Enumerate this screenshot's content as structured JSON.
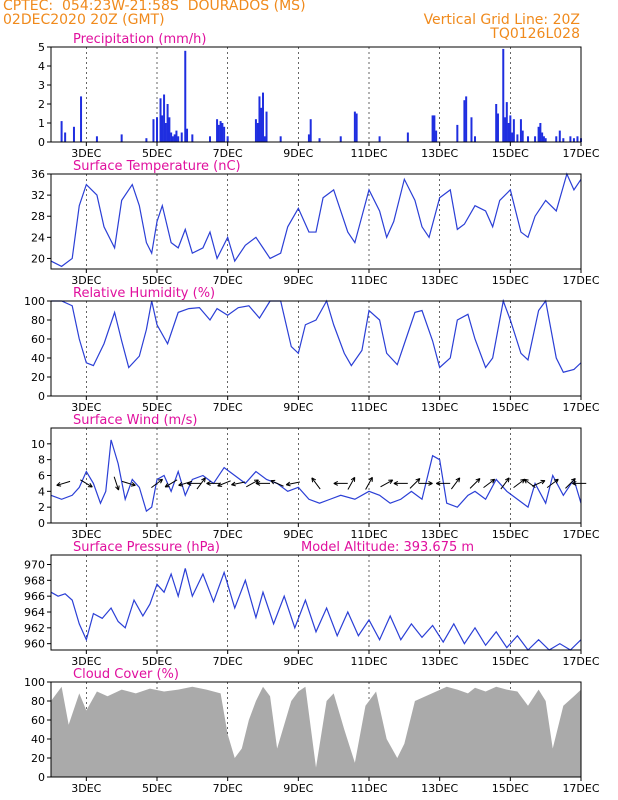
{
  "header": {
    "line1": "CPTEC:  054:23W-21:58S  DOURADOS (MS)",
    "line2": "02DEC2020 20Z (GMT)",
    "grid_note": "Vertical Grid Line: 20Z",
    "code": "TQ0126L028",
    "model_altitude": "Model Altitude: 393.675 m"
  },
  "colors": {
    "header": "#f08a1c",
    "title": "#e0109e",
    "line": "#2b3fd6",
    "bars": "#1f2ee0",
    "cloud": "#aaaaaa",
    "wind_arrow": "#000000"
  },
  "x_axis": {
    "unit": "days since 02DEC2020 20Z",
    "tick_labels": [
      "3DEC",
      "5DEC",
      "7DEC",
      "9DEC",
      "11DEC",
      "13DEC",
      "15DEC",
      "17DEC"
    ],
    "tick_days": [
      1,
      3,
      5,
      7,
      9,
      11,
      13,
      15
    ],
    "range": [
      0,
      15
    ]
  },
  "chart_data": [
    {
      "type": "bar",
      "title": "Precipitation (mm/h)",
      "ylim": [
        0,
        5
      ],
      "yticks": [
        0,
        1,
        2,
        3,
        4,
        5
      ],
      "x": [
        0.3,
        0.4,
        0.65,
        0.85,
        1.3,
        2.0,
        2.7,
        2.9,
        3.0,
        3.1,
        3.15,
        3.2,
        3.25,
        3.3,
        3.35,
        3.4,
        3.45,
        3.5,
        3.55,
        3.6,
        3.7,
        3.8,
        3.85,
        4.0,
        4.5,
        4.7,
        4.75,
        4.8,
        4.85,
        4.9,
        5.0,
        5.8,
        5.85,
        5.9,
        5.95,
        6.0,
        6.05,
        6.1,
        6.5,
        7.3,
        7.35,
        7.6,
        8.2,
        8.6,
        8.65,
        9.3,
        10.1,
        10.8,
        10.85,
        10.9,
        11.5,
        11.7,
        11.75,
        11.9,
        12.0,
        12.6,
        12.65,
        12.8,
        12.85,
        12.9,
        12.95,
        13.0,
        13.05,
        13.1,
        13.2,
        13.3,
        13.35,
        13.5,
        13.7,
        13.8,
        13.85,
        13.9,
        13.95,
        14.0,
        14.3,
        14.4,
        14.5,
        14.7,
        14.8,
        14.9,
        15.0
      ],
      "values": [
        1.1,
        0.5,
        0.8,
        2.4,
        0.3,
        0.4,
        0.2,
        1.2,
        1.3,
        2.3,
        1.4,
        2.5,
        1.0,
        2.0,
        1.3,
        0.5,
        0.3,
        0.4,
        0.6,
        0.3,
        0.5,
        4.8,
        0.7,
        0.4,
        0.3,
        1.2,
        0.9,
        1.1,
        1.0,
        0.8,
        0.3,
        1.2,
        1.0,
        2.4,
        1.8,
        2.6,
        0.3,
        1.6,
        0.3,
        0.4,
        1.2,
        0.2,
        0.3,
        1.6,
        1.5,
        0.3,
        0.5,
        1.4,
        1.4,
        0.6,
        0.9,
        2.2,
        2.4,
        1.3,
        0.3,
        2.0,
        1.5,
        4.9,
        1.3,
        2.1,
        1.0,
        1.4,
        0.5,
        1.2,
        0.4,
        1.2,
        0.6,
        0.3,
        0.3,
        0.8,
        1.0,
        0.5,
        0.3,
        0.2,
        0.3,
        0.6,
        0.2,
        0.3,
        0.2,
        0.3,
        0.2
      ]
    },
    {
      "type": "line",
      "title": "Surface Temperature (nC)",
      "ylim": [
        18,
        36
      ],
      "yticks": [
        20,
        24,
        28,
        32,
        36
      ],
      "x": [
        0.0,
        0.3,
        0.6,
        0.8,
        1.0,
        1.3,
        1.5,
        1.8,
        2.0,
        2.3,
        2.5,
        2.7,
        2.85,
        3.0,
        3.15,
        3.4,
        3.6,
        3.8,
        4.0,
        4.3,
        4.5,
        4.7,
        5.0,
        5.2,
        5.5,
        5.8,
        6.0,
        6.2,
        6.5,
        6.7,
        7.0,
        7.3,
        7.5,
        7.7,
        8.0,
        8.4,
        8.6,
        8.8,
        9.0,
        9.3,
        9.5,
        9.7,
        10.0,
        10.3,
        10.5,
        10.7,
        11.0,
        11.3,
        11.5,
        11.7,
        12.0,
        12.3,
        12.5,
        12.7,
        13.0,
        13.3,
        13.5,
        13.7,
        14.0,
        14.3,
        14.6,
        14.8,
        15.0
      ],
      "values": [
        19.5,
        18.5,
        20,
        30,
        34,
        32,
        26,
        22,
        31,
        34,
        30,
        23,
        21,
        27,
        30,
        23,
        22,
        25.5,
        21,
        22,
        25,
        20,
        24,
        19.5,
        22.5,
        24,
        22,
        20,
        21,
        26,
        29.5,
        25,
        25,
        31.5,
        33,
        25,
        23,
        28,
        33,
        29,
        24,
        27,
        35,
        31,
        26,
        24,
        31.5,
        33,
        25.5,
        26.5,
        30,
        29,
        26,
        31,
        33,
        25,
        24,
        28,
        31,
        29,
        36,
        33,
        35
      ]
    },
    {
      "type": "line",
      "title": "Relative Humidity (%)",
      "ylim": [
        0,
        100
      ],
      "yticks": [
        0,
        20,
        40,
        60,
        80,
        100
      ],
      "x": [
        0.0,
        0.3,
        0.6,
        0.8,
        1.0,
        1.2,
        1.5,
        1.8,
        2.0,
        2.2,
        2.5,
        2.7,
        2.85,
        3.0,
        3.3,
        3.6,
        3.9,
        4.2,
        4.5,
        4.7,
        5.0,
        5.3,
        5.6,
        5.9,
        6.2,
        6.5,
        6.8,
        7.0,
        7.2,
        7.5,
        7.8,
        8.0,
        8.3,
        8.5,
        8.8,
        9.0,
        9.3,
        9.5,
        9.8,
        10.0,
        10.3,
        10.5,
        10.8,
        11.0,
        11.3,
        11.5,
        11.8,
        12.0,
        12.3,
        12.5,
        12.8,
        13.0,
        13.3,
        13.5,
        13.8,
        14.0,
        14.3,
        14.5,
        14.8,
        15.0
      ],
      "values": [
        100,
        100,
        95,
        60,
        35,
        32,
        55,
        88,
        58,
        30,
        42,
        70,
        100,
        75,
        55,
        88,
        92,
        93,
        80,
        92,
        85,
        93,
        95,
        82,
        100,
        100,
        52,
        45,
        75,
        80,
        100,
        75,
        45,
        32,
        48,
        90,
        80,
        45,
        33,
        55,
        88,
        90,
        58,
        30,
        40,
        80,
        86,
        60,
        30,
        40,
        100,
        80,
        45,
        38,
        90,
        100,
        40,
        25,
        28,
        35
      ]
    },
    {
      "type": "line",
      "title": "Surface Wind (m/s)",
      "ylim": [
        0,
        12
      ],
      "yticks": [
        0,
        2,
        4,
        6,
        8,
        10
      ],
      "x": [
        0.0,
        0.3,
        0.6,
        0.8,
        1.0,
        1.2,
        1.4,
        1.55,
        1.7,
        1.9,
        2.1,
        2.3,
        2.5,
        2.7,
        2.85,
        3.0,
        3.2,
        3.4,
        3.6,
        3.8,
        4.0,
        4.3,
        4.6,
        4.9,
        5.2,
        5.5,
        5.8,
        6.1,
        6.4,
        6.7,
        7.0,
        7.3,
        7.6,
        7.9,
        8.2,
        8.6,
        9.0,
        9.3,
        9.6,
        9.9,
        10.2,
        10.5,
        10.8,
        11.0,
        11.2,
        11.5,
        11.8,
        12.0,
        12.3,
        12.6,
        12.9,
        13.2,
        13.5,
        13.7,
        14.0,
        14.2,
        14.5,
        14.8,
        15.0
      ],
      "values": [
        3.5,
        3.0,
        3.5,
        4.5,
        6.5,
        5.0,
        2.5,
        4.0,
        10.5,
        7.5,
        3.0,
        5.5,
        4.5,
        1.5,
        2.0,
        5.5,
        6.0,
        4.0,
        6.5,
        3.5,
        5.5,
        6.0,
        5.0,
        7.0,
        6.0,
        5.0,
        6.5,
        5.5,
        5.0,
        4.0,
        4.5,
        3.0,
        2.5,
        3.0,
        3.5,
        3.0,
        4.0,
        3.5,
        2.5,
        3.0,
        4.0,
        3.0,
        8.5,
        8.0,
        2.5,
        2.0,
        3.5,
        4.0,
        3.0,
        5.5,
        4.0,
        3.0,
        2.0,
        5.0,
        2.5,
        6.0,
        3.5,
        5.5,
        2.5
      ],
      "arrows_x": [
        0.35,
        1.0,
        1.85,
        2.2,
        3.0,
        3.4,
        3.8,
        4.05,
        4.25,
        4.6,
        4.9,
        5.3,
        5.7,
        6.0,
        6.4,
        6.85,
        7.5,
        8.2,
        8.5,
        9.0,
        9.5,
        9.9,
        10.3,
        10.6,
        11.1,
        11.45,
        12.0,
        12.4,
        12.85,
        13.25,
        13.55,
        13.8,
        14.2,
        14.7,
        14.95
      ],
      "arrows_u": [
        -1,
        1,
        0.3,
        1,
        0.8,
        -1,
        -1,
        -1,
        0.6,
        -1,
        -1,
        -1,
        0.9,
        -1,
        -0.9,
        -1,
        -0.6,
        -1,
        0.5,
        0.5,
        0.9,
        -1,
        0.7,
        1,
        -1,
        0.6,
        0.7,
        0.8,
        0.6,
        0.8,
        -0.8,
        0.9,
        0.8,
        0.7,
        -1
      ],
      "arrows_v": [
        -0.3,
        -0.6,
        -0.9,
        -0.3,
        0.6,
        -0.6,
        -0.3,
        0,
        0.8,
        0,
        -0.4,
        -0.2,
        0.5,
        0,
        0.4,
        -0.2,
        0.8,
        0,
        0.9,
        0.9,
        0.5,
        0,
        0.7,
        0,
        0,
        0.8,
        0.7,
        0.6,
        0.8,
        0.6,
        0.6,
        0.4,
        0.6,
        0.7,
        0
      ]
    },
    {
      "type": "line",
      "title": "Surface Pressure (hPa)",
      "ylim": [
        959.2,
        971.2
      ],
      "yticks": [
        960,
        962,
        964,
        966,
        968,
        970
      ],
      "x": [
        0.0,
        0.2,
        0.4,
        0.6,
        0.8,
        1.0,
        1.2,
        1.45,
        1.7,
        1.9,
        2.1,
        2.35,
        2.6,
        2.8,
        3.0,
        3.2,
        3.4,
        3.6,
        3.8,
        4.0,
        4.3,
        4.6,
        4.9,
        5.2,
        5.5,
        5.8,
        6.0,
        6.3,
        6.6,
        6.9,
        7.2,
        7.5,
        7.8,
        8.1,
        8.4,
        8.7,
        9.0,
        9.3,
        9.6,
        9.9,
        10.2,
        10.5,
        10.8,
        11.1,
        11.4,
        11.7,
        12.0,
        12.3,
        12.6,
        12.9,
        13.2,
        13.5,
        13.8,
        14.1,
        14.4,
        14.7,
        15.0
      ],
      "values": [
        966.5,
        966.0,
        966.3,
        965.5,
        962.5,
        960.5,
        963.8,
        963.2,
        964.5,
        962.8,
        962.0,
        965.5,
        963.5,
        965.0,
        967.5,
        966.5,
        968.8,
        966.0,
        969.5,
        966.0,
        968.8,
        965.3,
        969.0,
        964.5,
        968.0,
        963.3,
        966.5,
        962.5,
        966.0,
        962.0,
        965.5,
        961.5,
        964.5,
        961.0,
        964.0,
        961.0,
        963.0,
        960.5,
        963.5,
        960.5,
        962.5,
        960.8,
        962.3,
        960.2,
        962.5,
        960.0,
        962.0,
        959.8,
        961.5,
        959.5,
        961.0,
        959.2,
        960.5,
        959.2,
        960.0,
        959.2,
        960.5
      ]
    },
    {
      "type": "area",
      "title": "Cloud Cover (%)",
      "ylim": [
        0,
        100
      ],
      "yticks": [
        0,
        20,
        40,
        60,
        80,
        100
      ],
      "x": [
        0.0,
        0.3,
        0.5,
        0.8,
        1.0,
        1.3,
        1.6,
        2.0,
        2.4,
        2.8,
        3.2,
        3.6,
        4.0,
        4.4,
        4.8,
        5.0,
        5.2,
        5.4,
        5.6,
        5.8,
        6.0,
        6.2,
        6.4,
        6.6,
        6.8,
        7.0,
        7.2,
        7.5,
        7.8,
        8.0,
        8.3,
        8.6,
        8.9,
        9.2,
        9.5,
        9.8,
        10.0,
        10.3,
        10.6,
        10.9,
        11.2,
        11.5,
        11.8,
        12.0,
        12.3,
        12.6,
        12.9,
        13.2,
        13.5,
        13.8,
        14.0,
        14.2,
        14.5,
        14.8,
        15.0
      ],
      "values": [
        80,
        95,
        55,
        88,
        70,
        90,
        85,
        92,
        88,
        93,
        90,
        92,
        95,
        92,
        88,
        45,
        20,
        30,
        60,
        80,
        95,
        85,
        30,
        55,
        80,
        90,
        95,
        10,
        80,
        88,
        50,
        15,
        75,
        90,
        40,
        20,
        35,
        80,
        85,
        90,
        95,
        92,
        88,
        94,
        90,
        95,
        92,
        90,
        75,
        92,
        80,
        30,
        75,
        85,
        92
      ]
    }
  ]
}
